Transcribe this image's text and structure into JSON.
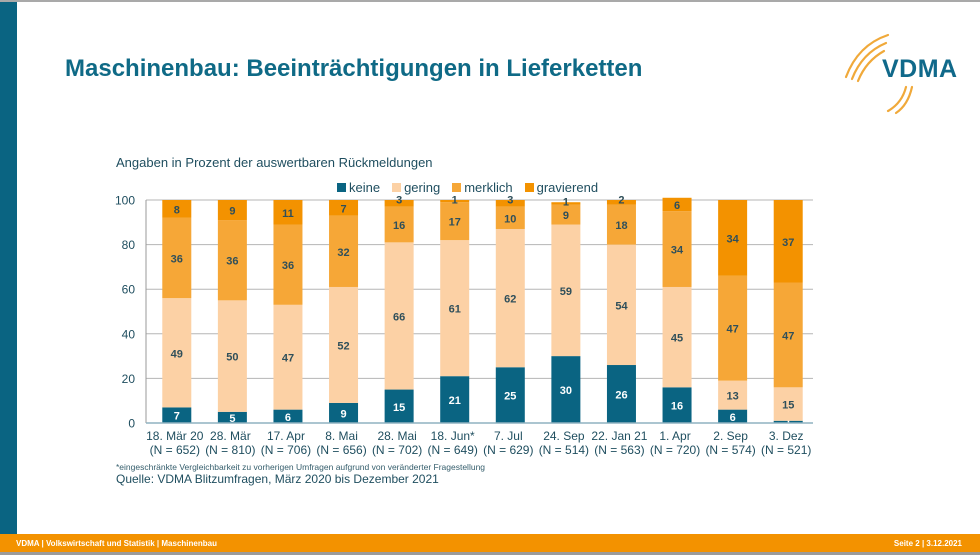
{
  "slide": {
    "title": "Maschinenbau: Beeinträchtigungen in Lieferketten",
    "logo_text": "VDMA",
    "subtitle": "Angaben in Prozent der auswertbaren Rückmeldungen",
    "footnote": "*eingeschränkte Vergleichbarkeit zu vorherigen Umfragen aufgrund von veränderter Fragestellung",
    "source": "Quelle: VDMA Blitzumfragen, März 2020 bis Dezember 2021",
    "footer_left": "VDMA   | Volkswirtschaft und Statistik | Maschinenbau",
    "footer_right": "Seite 2 | 3.12.2021"
  },
  "colors": {
    "accent_blue": "#0a6482",
    "footer_orange": "#f39200"
  },
  "chart_data": {
    "type": "bar",
    "stacked": true,
    "title": "",
    "ylabel": "",
    "xlabel": "",
    "ylim": [
      0,
      100
    ],
    "yticks": [
      0,
      20,
      40,
      60,
      80,
      100
    ],
    "grid": true,
    "legend_position": "top",
    "categories": [
      "18. Mär 20",
      "28. Mär",
      "17. Apr",
      "8. Mai",
      "28. Mai",
      "18. Jun*",
      "7. Jul",
      "24. Sep",
      "22. Jan 21",
      "1. Apr",
      "2. Sep",
      "3. Dez"
    ],
    "sample_sizes": [
      "(N = 652)",
      "(N = 810)",
      "(N = 706)",
      "(N = 656)",
      "(N = 702)",
      "(N = 649)",
      "(N = 629)",
      "(N = 514)",
      "(N = 563)",
      "(N = 720)",
      "(N = 574)",
      "(N = 521)"
    ],
    "series": [
      {
        "name": "keine",
        "color": "#0a6482",
        "label_color": "#ffffff",
        "values": [
          7,
          5,
          6,
          9,
          15,
          21,
          25,
          30,
          26,
          16,
          6,
          1
        ]
      },
      {
        "name": "gering",
        "color": "#fcd1a5",
        "label_color": "#2f4f5a",
        "values": [
          49,
          50,
          47,
          52,
          66,
          61,
          62,
          59,
          54,
          45,
          13,
          15
        ]
      },
      {
        "name": "merklich",
        "color": "#f6a737",
        "label_color": "#2f4f5a",
        "values": [
          36,
          36,
          36,
          32,
          16,
          17,
          10,
          9,
          18,
          34,
          47,
          47
        ]
      },
      {
        "name": "gravierend",
        "color": "#f39200",
        "label_color": "#2f4f5a",
        "values": [
          8,
          9,
          11,
          7,
          3,
          1,
          3,
          1,
          2,
          6,
          34,
          37
        ]
      }
    ]
  }
}
